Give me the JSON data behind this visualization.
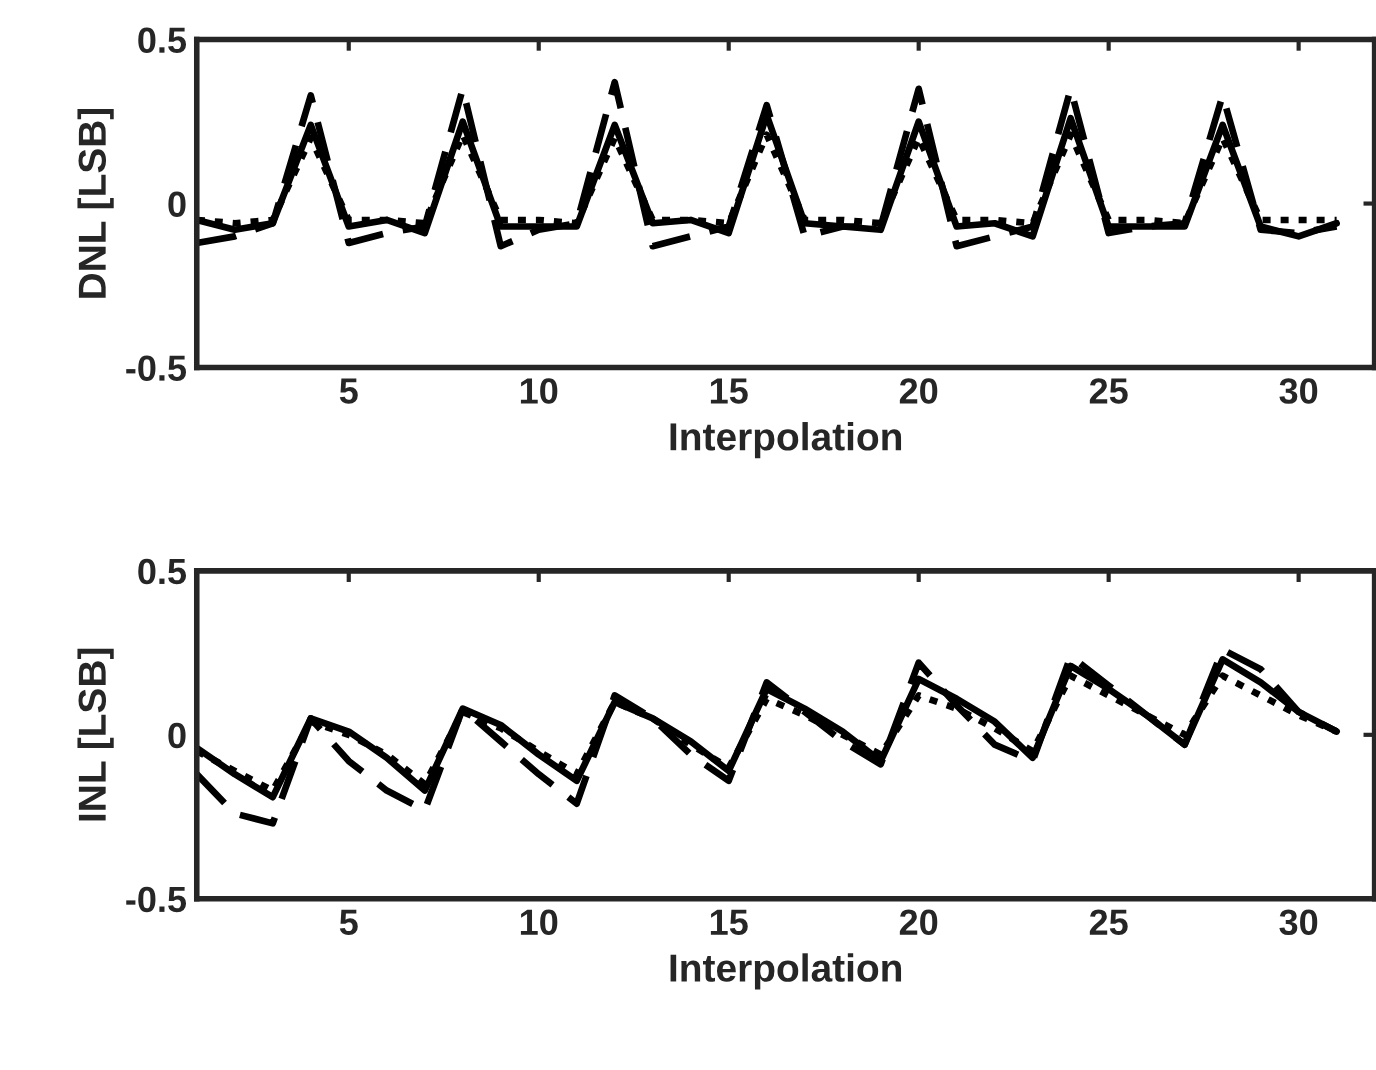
{
  "chart_data": [
    {
      "type": "line",
      "xlabel": "Interpolation",
      "ylabel": "DNL [LSB]",
      "x": [
        1,
        2,
        3,
        4,
        5,
        6,
        7,
        8,
        9,
        10,
        11,
        12,
        13,
        14,
        15,
        16,
        17,
        18,
        19,
        20,
        21,
        22,
        23,
        24,
        25,
        26,
        27,
        28,
        29,
        30,
        31
      ],
      "xlim": [
        1,
        32
      ],
      "xticks": [
        5,
        10,
        15,
        20,
        25,
        30
      ],
      "ylim": [
        -0.5,
        0.5
      ],
      "yticks": [
        -0.5,
        0,
        0.5
      ],
      "grid": false,
      "legend": false,
      "series": [
        {
          "color": "#000000",
          "line_style": "solid",
          "values": [
            -0.05,
            -0.08,
            -0.06,
            0.24,
            -0.07,
            -0.05,
            -0.09,
            0.25,
            -0.07,
            -0.07,
            -0.07,
            0.24,
            -0.06,
            -0.05,
            -0.09,
            0.27,
            -0.06,
            -0.07,
            -0.08,
            0.25,
            -0.07,
            -0.06,
            -0.1,
            0.26,
            -0.07,
            -0.07,
            -0.07,
            0.24,
            -0.07,
            -0.1,
            -0.06
          ]
        },
        {
          "color": "#000000",
          "line_style": "dashed",
          "values": [
            -0.12,
            -0.1,
            -0.06,
            0.33,
            -0.12,
            -0.09,
            -0.07,
            0.35,
            -0.13,
            -0.08,
            -0.06,
            0.37,
            -0.13,
            -0.1,
            -0.07,
            0.3,
            -0.1,
            -0.07,
            -0.07,
            0.35,
            -0.13,
            -0.1,
            -0.07,
            0.35,
            -0.09,
            -0.07,
            -0.06,
            0.33,
            -0.08,
            -0.09,
            -0.07
          ]
        },
        {
          "color": "#000000",
          "line_style": "dotted",
          "values": [
            -0.05,
            -0.06,
            -0.05,
            0.2,
            -0.05,
            -0.05,
            -0.06,
            0.21,
            -0.05,
            -0.05,
            -0.06,
            0.2,
            -0.05,
            -0.05,
            -0.06,
            0.21,
            -0.05,
            -0.05,
            -0.06,
            0.2,
            -0.05,
            -0.05,
            -0.06,
            0.21,
            -0.05,
            -0.05,
            -0.06,
            0.2,
            -0.05,
            -0.05,
            -0.05
          ]
        }
      ]
    },
    {
      "type": "line",
      "xlabel": "Interpolation",
      "ylabel": "INL [LSB]",
      "x": [
        1,
        2,
        3,
        4,
        5,
        6,
        7,
        8,
        9,
        10,
        11,
        12,
        13,
        14,
        15,
        16,
        17,
        18,
        19,
        20,
        21,
        22,
        23,
        24,
        25,
        26,
        27,
        28,
        29,
        30,
        31
      ],
      "xlim": [
        1,
        32
      ],
      "xticks": [
        5,
        10,
        15,
        20,
        25,
        30
      ],
      "ylim": [
        -0.5,
        0.5
      ],
      "yticks": [
        -0.5,
        0,
        0.5
      ],
      "grid": false,
      "legend": false,
      "series": [
        {
          "color": "#000000",
          "line_style": "solid",
          "values": [
            -0.04,
            -0.12,
            -0.19,
            0.05,
            0.01,
            -0.07,
            -0.17,
            0.08,
            0.03,
            -0.06,
            -0.14,
            0.1,
            0.05,
            -0.02,
            -0.11,
            0.14,
            0.08,
            0.01,
            -0.08,
            0.17,
            0.11,
            0.04,
            -0.07,
            0.21,
            0.14,
            0.06,
            -0.03,
            0.23,
            0.16,
            0.07,
            0.01
          ]
        },
        {
          "color": "#000000",
          "line_style": "dashed",
          "values": [
            -0.12,
            -0.24,
            -0.27,
            0.05,
            -0.08,
            -0.17,
            -0.23,
            0.08,
            -0.02,
            -0.12,
            -0.21,
            0.12,
            0.05,
            -0.06,
            -0.14,
            0.16,
            0.07,
            -0.02,
            -0.09,
            0.22,
            0.09,
            -0.03,
            -0.08,
            0.24,
            0.15,
            0.06,
            -0.03,
            0.26,
            0.2,
            0.07,
            0.01
          ]
        },
        {
          "color": "#000000",
          "line_style": "dotted",
          "values": [
            -0.05,
            -0.11,
            -0.17,
            0.04,
            0.0,
            -0.06,
            -0.15,
            0.07,
            0.02,
            -0.05,
            -0.12,
            0.1,
            0.05,
            -0.03,
            -0.1,
            0.11,
            0.06,
            0.0,
            -0.06,
            0.12,
            0.08,
            0.02,
            -0.05,
            0.18,
            0.12,
            0.06,
            0.0,
            0.18,
            0.12,
            0.06,
            0.01
          ]
        }
      ]
    }
  ]
}
